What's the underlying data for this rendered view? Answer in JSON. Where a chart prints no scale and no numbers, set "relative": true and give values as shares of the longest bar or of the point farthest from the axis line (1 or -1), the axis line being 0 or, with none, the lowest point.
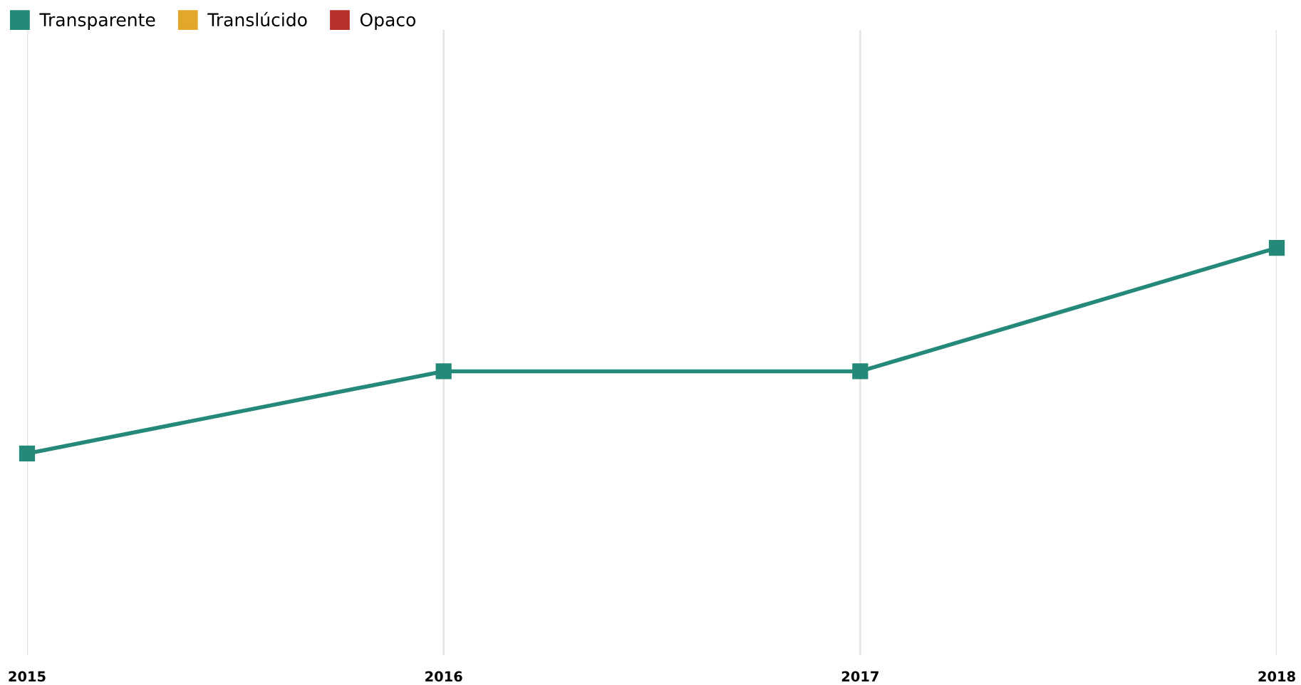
{
  "chart_data": {
    "type": "line",
    "relative": true,
    "categories": [
      "2015",
      "2016",
      "2017",
      "2018"
    ],
    "series": [
      {
        "name": "Transparente",
        "color": "#25897a",
        "values": [
          0,
          0.4,
          0.4,
          1
        ]
      },
      {
        "name": "Translúcido",
        "color": "#e3a729",
        "values": [
          null,
          null,
          null,
          null
        ]
      },
      {
        "name": "Opaco",
        "color": "#b7312b",
        "values": [
          null,
          null,
          null,
          null
        ]
      }
    ],
    "marker": "square",
    "line_style": "solid",
    "grid": "x",
    "legend": "top left"
  }
}
